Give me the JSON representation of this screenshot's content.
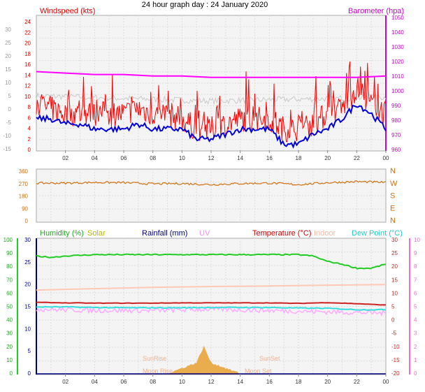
{
  "title": "24 hour graph day : 24 January 2020",
  "colors": {
    "windspeed": "#ff0000",
    "wind_avg": "#0000dd",
    "barometer": "#ff00ff",
    "gust_trace": "#c8c8c8",
    "wind_dir": "#d07010",
    "humidity": "#22cc22",
    "solar": "#e8a030",
    "rainfall": "#000080",
    "uv": "#ffaaff",
    "temperature": "#cc2222",
    "indoor": "#ffc8b4",
    "dew_point": "#33dddd",
    "axis_left_wind": "#888888",
    "axis_bottom": "#ff00ff"
  },
  "top_panel": {
    "left_label": "Windspeed (kts)",
    "right_label": "Barometer (hpa)",
    "left_ticks": [
      "24",
      "22",
      "20",
      "18",
      "16",
      "14",
      "12",
      "10",
      "8",
      "6",
      "4",
      "2",
      "0"
    ],
    "far_left_ticks": [
      "30",
      "25",
      "20",
      "15",
      "10",
      "5",
      "0",
      "-5",
      "-10",
      "-15"
    ],
    "right_ticks": [
      "1050",
      "1040",
      "1030",
      "1020",
      "1010",
      "1000",
      "990",
      "980",
      "970",
      "960"
    ]
  },
  "dir_panel": {
    "left_ticks": [
      "360",
      "270",
      "180",
      "90",
      "0"
    ],
    "right_labels": [
      "N",
      "W",
      "S",
      "E",
      "N"
    ]
  },
  "bottom_panel": {
    "legend": {
      "humidity": "Humidity  (%)",
      "solar": "Solar",
      "rainfall": "Rainfall (mm)",
      "uv": "UV",
      "temperature": "Temperature  (°C)",
      "indoor": "Indoor",
      "dew_point": "Dew Point (°C)"
    },
    "hum_ticks": [
      "100",
      "90",
      "80",
      "70",
      "60",
      "50",
      "40",
      "30",
      "20",
      "10",
      "0"
    ],
    "rain_ticks": [
      "30",
      "25",
      "20",
      "15",
      "10",
      "5",
      "0"
    ],
    "temp_ticks": [
      "30",
      "25",
      "20",
      "15",
      "10",
      "5",
      "0",
      "-5",
      "-10",
      "-15",
      "-20"
    ],
    "uv_ticks": [
      "10",
      "9",
      "8",
      "7",
      "6",
      "5",
      "4",
      "3",
      "2",
      "1",
      "0"
    ],
    "annotations": {
      "sunrise": "SunRise",
      "sunset": "SunSet",
      "moonrise": "Moon Rise",
      "moonset": "Moon Set"
    }
  },
  "x_ticks": [
    "02",
    "04",
    "06",
    "08",
    "10",
    "12",
    "14",
    "16",
    "18",
    "20",
    "22",
    "00"
  ],
  "chart_data": [
    {
      "type": "line",
      "panel": "wind-barometer",
      "series": [
        {
          "name": "Windspeed (kts)",
          "x": [
            0,
            1,
            2,
            3,
            4,
            5,
            6,
            7,
            8,
            9,
            10,
            11,
            12,
            13,
            14,
            15,
            16,
            17,
            18,
            19,
            20,
            21,
            22,
            23,
            24
          ],
          "values": [
            9,
            8,
            7,
            7,
            7,
            7,
            7,
            8,
            7,
            7,
            6,
            4,
            4,
            5,
            6,
            6,
            6,
            4,
            4,
            5,
            7,
            8,
            12,
            9,
            7
          ]
        },
        {
          "name": "Windspeed avg",
          "x": [
            0,
            1,
            2,
            3,
            4,
            5,
            6,
            7,
            8,
            9,
            10,
            11,
            12,
            13,
            14,
            15,
            16,
            17,
            18,
            19,
            20,
            21,
            22,
            23,
            24
          ],
          "values": [
            6,
            6,
            5,
            5,
            4,
            4,
            4,
            5,
            4,
            4,
            4,
            2,
            2,
            3,
            4,
            4,
            4,
            1,
            1,
            3,
            4,
            6,
            9,
            7,
            4
          ]
        },
        {
          "name": "Barometer (hpa)",
          "x": [
            0,
            2,
            4,
            6,
            8,
            10,
            12,
            14,
            16,
            18,
            20,
            22,
            24
          ],
          "values": [
            1013,
            1012,
            1011,
            1011,
            1010,
            1010,
            1009,
            1009,
            1009,
            1009,
            1009,
            1009,
            1010
          ]
        }
      ],
      "ylim": [
        0,
        25
      ],
      "ylim_right": [
        958,
        1052
      ]
    },
    {
      "type": "line",
      "panel": "wind-direction",
      "series": [
        {
          "name": "Wind direction",
          "x": [
            0,
            2,
            4,
            6,
            8,
            10,
            12,
            14,
            16,
            18,
            20,
            22,
            24
          ],
          "values": [
            265,
            265,
            270,
            268,
            260,
            262,
            255,
            262,
            265,
            255,
            268,
            275,
            270
          ]
        }
      ],
      "ylim": [
        0,
        360
      ]
    },
    {
      "type": "line",
      "panel": "humidity-temperature",
      "series": [
        {
          "name": "Humidity  (%)",
          "x": [
            0,
            1,
            2,
            4,
            6,
            8,
            10,
            12,
            14,
            16,
            18,
            19,
            20,
            21,
            22,
            23,
            24
          ],
          "values": [
            87,
            86,
            87,
            88,
            88,
            88,
            88,
            88,
            88,
            88,
            88,
            87,
            83,
            81,
            78,
            78,
            81
          ]
        },
        {
          "name": "Temperature  (°C)",
          "x": [
            0,
            2,
            4,
            6,
            8,
            10,
            12,
            14,
            16,
            18,
            20,
            22,
            24
          ],
          "values": [
            6.5,
            6.3,
            6.2,
            6.2,
            6.2,
            6.3,
            6.3,
            6.3,
            6.3,
            6.1,
            6.4,
            6.0,
            5.5
          ]
        },
        {
          "name": "Dew Point (°C)",
          "x": [
            0,
            2,
            4,
            6,
            8,
            10,
            12,
            14,
            16,
            18,
            20,
            22,
            24
          ],
          "values": [
            4.8,
            4.8,
            4.6,
            4.5,
            4.5,
            4.5,
            4.6,
            4.6,
            4.6,
            4.4,
            4.3,
            3.8,
            3.8
          ]
        },
        {
          "name": "Indoor",
          "x": [
            0,
            4,
            8,
            12,
            16,
            20,
            24
          ],
          "values": [
            11.0,
            11.5,
            12.0,
            12.3,
            12.5,
            12.8,
            13.0
          ]
        },
        {
          "name": "UV",
          "x": [
            0,
            4,
            8,
            12,
            16,
            20,
            24
          ],
          "values": [
            4.8,
            4.7,
            4.7,
            4.8,
            4.7,
            4.6,
            4.5
          ]
        },
        {
          "name": "Solar",
          "x": [
            9,
            10,
            11,
            11.5,
            12,
            13,
            14
          ],
          "values": [
            0,
            1,
            2,
            5,
            2,
            1,
            0
          ]
        },
        {
          "name": "Rainfall (mm)",
          "x": [
            0,
            24
          ],
          "values": [
            0,
            0
          ]
        }
      ],
      "ylim": [
        0,
        100
      ],
      "ylim_temp": [
        -20,
        30
      ],
      "ylim_rain": [
        0,
        30
      ],
      "ylim_uv": [
        0,
        10
      ]
    }
  ]
}
